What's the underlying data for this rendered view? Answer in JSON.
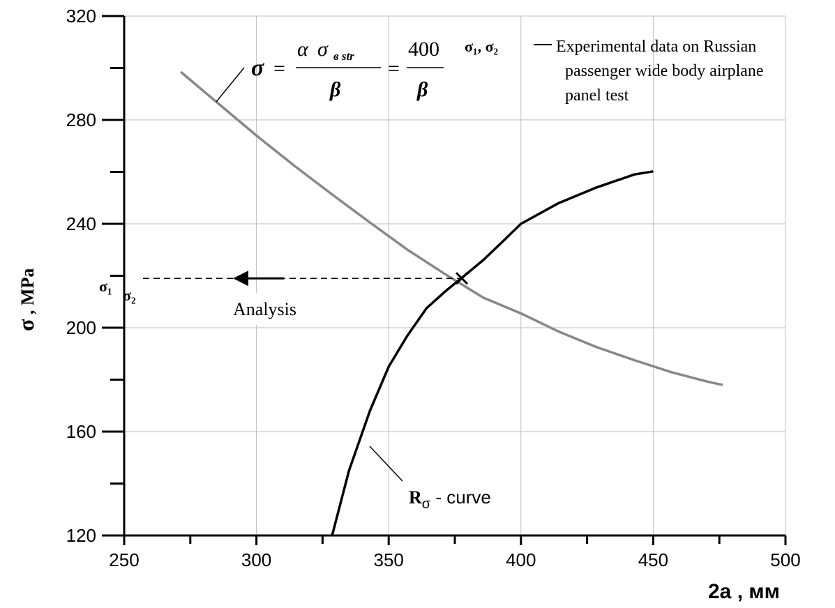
{
  "chart_data": {
    "type": "line",
    "xlabel": "2a , мм",
    "ylabel_symbol": "σ",
    "ylabel_unit": " , MPa",
    "xlim": [
      250,
      500
    ],
    "ylim": [
      120,
      320
    ],
    "xticks": [
      250,
      300,
      350,
      400,
      450,
      500
    ],
    "yticks": [
      120,
      160,
      200,
      240,
      280,
      320
    ],
    "grid": true,
    "series": [
      {
        "id": "stress-curve",
        "color": "#888888",
        "x": [
          271.4,
          285.7,
          300,
          314.3,
          328.6,
          342.9,
          357.1,
          371.4,
          385.7,
          400,
          414.3,
          428.6,
          442.9,
          457.1,
          471.4,
          476.3
        ],
        "y": [
          298.5,
          286.2,
          274.0,
          262.4,
          251.3,
          240.5,
          230.0,
          220.6,
          211.6,
          205.5,
          198.5,
          192.5,
          187.5,
          182.8,
          179.0,
          178.0
        ]
      },
      {
        "id": "r-sigma-curve",
        "color": "#000000",
        "x": [
          328.6,
          335,
          342.9,
          350,
          357.1,
          364.3,
          371.4,
          378.6,
          385.7,
          392.9,
          400,
          414.3,
          428.6,
          442.9,
          450
        ],
        "y": [
          120.0,
          145.0,
          168.0,
          185.0,
          197.0,
          207.5,
          214.0,
          220.0,
          226.0,
          233.0,
          240.0,
          248.0,
          254.0,
          259.0,
          260.2
        ]
      }
    ],
    "annotations": {
      "formula": {
        "lhs": "σ",
        "eq": "=",
        "num1_alpha": "α",
        "num1_sigma": "σ",
        "num1_sub": "в str",
        "den1": "β",
        "eq2": "=",
        "num2": "400",
        "den2": "β"
      },
      "legend": {
        "symbols": "σ₁, σ₂",
        "line1": "Experimental data on Russian",
        "line2": "passenger wide body airplane",
        "line3": "panel test"
      },
      "sigma1": "σ₁",
      "sigma2": "σ₂",
      "analysis": "Analysis",
      "rcurve_R": "R",
      "rcurve_sub": "σ",
      "rcurve_text": " - curve",
      "dashed_level": 219
    }
  }
}
